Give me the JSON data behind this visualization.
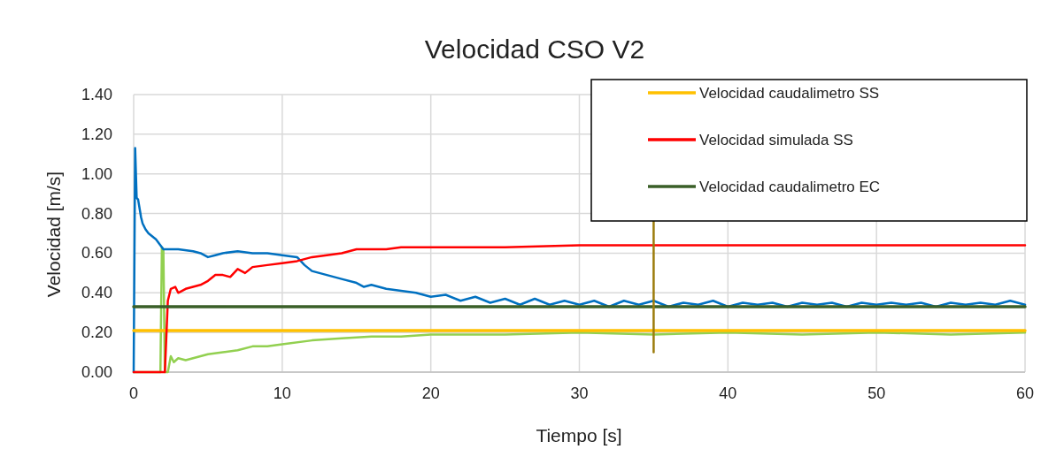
{
  "chart_data": {
    "type": "line",
    "title": "Velocidad CSO V2",
    "xlabel": "Tiempo [s]",
    "ylabel": "Velocidad [m/s]",
    "xlim": [
      0,
      60
    ],
    "xticks": [
      0,
      10,
      20,
      30,
      40,
      50,
      60
    ],
    "ylim": [
      0,
      1.4
    ],
    "yticks": [
      {
        "value": 0,
        "label": "0.00"
      },
      {
        "value": 0.2,
        "label": "0.20"
      },
      {
        "value": 0.4,
        "label": "0.40"
      },
      {
        "value": 0.6,
        "label": "0.60"
      },
      {
        "value": 0.8,
        "label": "0.80"
      },
      {
        "value": 1,
        "label": "1.00"
      },
      {
        "value": 1.2,
        "label": "1.20"
      },
      {
        "value": 1.4,
        "label": "1.40"
      }
    ],
    "grid": true,
    "legend": "top right",
    "marker": "none",
    "line_style": "solid",
    "series": [
      {
        "color": "#92d050",
        "x": [
          0,
          1.8,
          1.9,
          2.0,
          2.1,
          2.3,
          2.5,
          2.7,
          3,
          3.5,
          4,
          4.5,
          5,
          6,
          7,
          8,
          9,
          10,
          12,
          14,
          16,
          18,
          20,
          25,
          30,
          35,
          40,
          45,
          50,
          55,
          60
        ],
        "values": [
          0,
          0,
          0.63,
          0.62,
          0,
          0,
          0.08,
          0.05,
          0.07,
          0.06,
          0.07,
          0.08,
          0.09,
          0.1,
          0.11,
          0.13,
          0.13,
          0.14,
          0.16,
          0.17,
          0.18,
          0.18,
          0.19,
          0.19,
          0.2,
          0.19,
          0.2,
          0.19,
          0.2,
          0.19,
          0.2
        ]
      },
      {
        "color": "#0070c0",
        "x": [
          0,
          0.1,
          0.2,
          0.3,
          0.5,
          0.6,
          0.8,
          1,
          1.5,
          2,
          2.5,
          3,
          4,
          4.5,
          5,
          5.5,
          6,
          7,
          8,
          9,
          10,
          11,
          11.5,
          12,
          13,
          14,
          15,
          15.5,
          16,
          17,
          18,
          19,
          20,
          21,
          22,
          23,
          24,
          25,
          26,
          27,
          28,
          29,
          30,
          31,
          32,
          33,
          34,
          35,
          36,
          37,
          38,
          39,
          40,
          41,
          42,
          43,
          44,
          45,
          46,
          47,
          48,
          49,
          50,
          51,
          52,
          53,
          54,
          55,
          56,
          57,
          58,
          59,
          60
        ],
        "values": [
          0,
          1.13,
          0.88,
          0.87,
          0.78,
          0.75,
          0.72,
          0.7,
          0.67,
          0.62,
          0.62,
          0.62,
          0.61,
          0.6,
          0.58,
          0.59,
          0.6,
          0.61,
          0.6,
          0.6,
          0.59,
          0.58,
          0.54,
          0.51,
          0.49,
          0.47,
          0.45,
          0.43,
          0.44,
          0.42,
          0.41,
          0.4,
          0.38,
          0.39,
          0.36,
          0.38,
          0.35,
          0.37,
          0.34,
          0.37,
          0.34,
          0.36,
          0.34,
          0.36,
          0.33,
          0.36,
          0.34,
          0.36,
          0.33,
          0.35,
          0.34,
          0.36,
          0.33,
          0.35,
          0.34,
          0.35,
          0.33,
          0.35,
          0.34,
          0.35,
          0.33,
          0.35,
          0.34,
          0.35,
          0.34,
          0.35,
          0.33,
          0.35,
          0.34,
          0.35,
          0.34,
          0.36,
          0.34
        ]
      },
      {
        "name": "Velocidad caudalimetro SS",
        "color": "#ffc000",
        "x": [
          0,
          60
        ],
        "values": [
          0.21,
          0.21
        ]
      },
      {
        "name": "Velocidad simulada SS",
        "color": "#ff0000",
        "x": [
          0,
          2.1,
          2.3,
          2.5,
          2.8,
          3,
          3.5,
          4,
          4.5,
          5,
          5.5,
          6,
          6.5,
          7,
          7.5,
          8,
          9,
          10,
          11,
          12,
          13,
          14,
          15,
          16,
          17,
          18,
          20,
          25,
          30,
          35,
          40,
          45,
          50,
          55,
          60
        ],
        "values": [
          0,
          0,
          0.36,
          0.42,
          0.43,
          0.4,
          0.42,
          0.43,
          0.44,
          0.46,
          0.49,
          0.49,
          0.48,
          0.52,
          0.5,
          0.53,
          0.54,
          0.55,
          0.56,
          0.58,
          0.59,
          0.6,
          0.62,
          0.62,
          0.62,
          0.63,
          0.63,
          0.63,
          0.64,
          0.64,
          0.64,
          0.64,
          0.64,
          0.64,
          0.64
        ]
      },
      {
        "name": "Velocidad caudalimetro EC",
        "color": "#3a5f28",
        "x": [
          0,
          60
        ],
        "values": [
          0.33,
          0.33
        ]
      },
      {
        "color": "#9c7c0c",
        "x": [
          35,
          35
        ],
        "values": [
          0.1,
          0.76
        ]
      }
    ]
  }
}
